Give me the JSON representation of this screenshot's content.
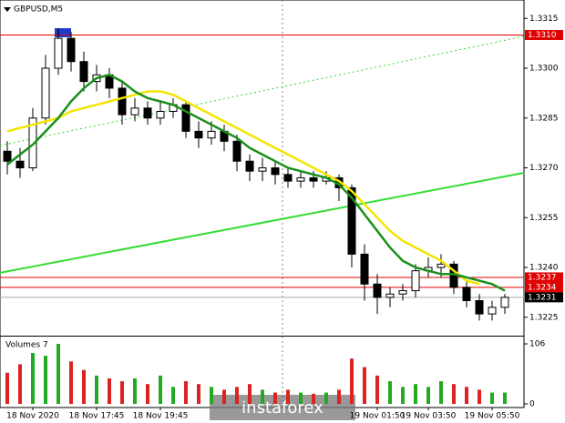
{
  "chart_data": {
    "type": "candlestick",
    "title": "GBPUSD,M5",
    "ylim": [
      1.322,
      1.332
    ],
    "yticks": [
      1.3315,
      {
        "value": 1.33,
        "label": "1.3300"
      },
      1.3285,
      {
        "value": 1.327,
        "label": "1.3270"
      },
      1.3255,
      {
        "value": 1.324,
        "label": "1.3240"
      },
      1.3225
    ],
    "categories": [
      null,
      null,
      "18 Nov 2020",
      null,
      null,
      null,
      null,
      "18 Nov 17:45",
      null,
      null,
      null,
      null,
      "18 Nov 19:45",
      null,
      null,
      null,
      null,
      null,
      null,
      null,
      null,
      null,
      null,
      null,
      null,
      null,
      null,
      null,
      null,
      "19 Nov 01:50",
      null,
      null,
      null,
      "19 Nov 03:50",
      null,
      null,
      null,
      null,
      "19 Nov 05:50",
      null
    ],
    "open": [
      1.3275,
      1.3272,
      1.327,
      1.3285,
      1.33,
      1.3309,
      1.3302,
      1.3296,
      1.3298,
      1.3294,
      1.3286,
      1.3288,
      1.3285,
      1.3287,
      1.3289,
      1.3281,
      1.3279,
      1.3281,
      1.3278,
      1.3272,
      1.3269,
      1.327,
      1.3268,
      1.3266,
      1.3267,
      1.3266,
      1.3267,
      1.3264,
      1.3244,
      1.3235,
      1.3231,
      1.3232,
      1.3233,
      1.3239,
      1.324,
      1.3241,
      1.3234,
      1.323,
      1.3226,
      1.3228
    ],
    "high": [
      1.3278,
      1.3276,
      1.3288,
      1.3304,
      1.3312,
      1.3311,
      1.3305,
      1.3301,
      1.33,
      1.3296,
      1.3291,
      1.329,
      1.329,
      1.3291,
      1.329,
      1.3284,
      1.3284,
      1.3283,
      1.328,
      1.3274,
      1.3273,
      1.3272,
      1.327,
      1.3269,
      1.3269,
      1.3269,
      1.3268,
      1.3265,
      1.3247,
      1.3238,
      1.3234,
      1.3235,
      1.3241,
      1.3243,
      1.3244,
      1.3242,
      1.3236,
      1.3232,
      1.323,
      1.3232
    ],
    "low": [
      1.3268,
      1.3267,
      1.3269,
      1.3283,
      1.3298,
      1.3299,
      1.3293,
      1.3293,
      1.3291,
      1.3283,
      1.3284,
      1.3283,
      1.3283,
      1.3285,
      1.3279,
      1.3276,
      1.3277,
      1.3275,
      1.3269,
      1.3266,
      1.3266,
      1.3265,
      1.3264,
      1.3264,
      1.3264,
      1.3265,
      1.326,
      1.324,
      1.323,
      1.3226,
      1.3228,
      1.323,
      1.3231,
      1.3237,
      1.3237,
      1.3232,
      1.3228,
      1.3224,
      1.3224,
      1.3226
    ],
    "close": [
      1.3272,
      1.327,
      1.3285,
      1.33,
      1.3309,
      1.3302,
      1.3296,
      1.3298,
      1.3294,
      1.3286,
      1.3288,
      1.3285,
      1.3287,
      1.3289,
      1.3281,
      1.3279,
      1.3281,
      1.3278,
      1.3272,
      1.3269,
      1.327,
      1.3268,
      1.3266,
      1.3267,
      1.3266,
      1.3267,
      1.3264,
      1.3244,
      1.3235,
      1.3231,
      1.3232,
      1.3233,
      1.3239,
      1.324,
      1.3241,
      1.3234,
      1.323,
      1.3226,
      1.3228,
      1.3231
    ],
    "series": [
      {
        "color": "#f5e400",
        "values": [
          1.3281,
          1.3282,
          1.3283,
          1.3284,
          1.3285,
          1.3287,
          1.3288,
          1.3289,
          1.329,
          1.3291,
          1.3292,
          1.3293,
          1.3293,
          1.3292,
          1.329,
          1.3288,
          1.3286,
          1.3284,
          1.3282,
          1.328,
          1.3278,
          1.3276,
          1.3274,
          1.3272,
          1.327,
          1.3268,
          1.3266,
          1.3263,
          1.3259,
          1.3255,
          1.3251,
          1.3248,
          1.3246,
          1.3244,
          1.3242,
          1.3239,
          1.3236,
          1.3235,
          null,
          null
        ]
      },
      {
        "color": "#1a8f1a",
        "values": [
          1.3271,
          1.3274,
          1.3277,
          1.3281,
          1.3285,
          1.329,
          1.3294,
          1.3297,
          1.3298,
          1.3296,
          1.3293,
          1.3291,
          1.329,
          1.3289,
          1.3287,
          1.3285,
          1.3283,
          1.3281,
          1.3279,
          1.3276,
          1.3274,
          1.3272,
          1.327,
          1.3269,
          1.3268,
          1.3267,
          1.3265,
          1.3261,
          1.3256,
          1.3251,
          1.3246,
          1.3242,
          1.324,
          1.3239,
          1.3238,
          1.3238,
          1.3237,
          1.3236,
          1.3235,
          1.3233
        ]
      }
    ],
    "trendlines": [
      {
        "color": "#33dd33",
        "dashed": false,
        "values": [
          1.32384,
          1.32685
        ]
      },
      {
        "color": "#33dd33",
        "dashed": true,
        "values": [
          1.32767,
          1.33096
        ]
      }
    ],
    "levels": [
      {
        "value": 1.331,
        "label": "1.3310",
        "color": "#e00000"
      },
      {
        "value": 1.3237,
        "label": "1.3237",
        "color": "#e00000"
      },
      {
        "value": 1.3234,
        "label": "1.3234",
        "color": "#e00000"
      },
      {
        "value": 1.3231,
        "label": "1.3231",
        "color": "#000000"
      }
    ],
    "volume": {
      "title": "Volumes 7",
      "ylim": [
        0,
        106
      ],
      "yticks": [
        0,
        106
      ],
      "values": [
        55,
        70,
        90,
        85,
        106,
        75,
        60,
        50,
        45,
        40,
        45,
        35,
        50,
        30,
        40,
        35,
        30,
        25,
        30,
        35,
        25,
        20,
        25,
        20,
        18,
        20,
        25,
        80,
        65,
        50,
        40,
        30,
        35,
        30,
        40,
        35,
        30,
        25,
        20,
        20
      ]
    },
    "watermark": "instaforex"
  }
}
